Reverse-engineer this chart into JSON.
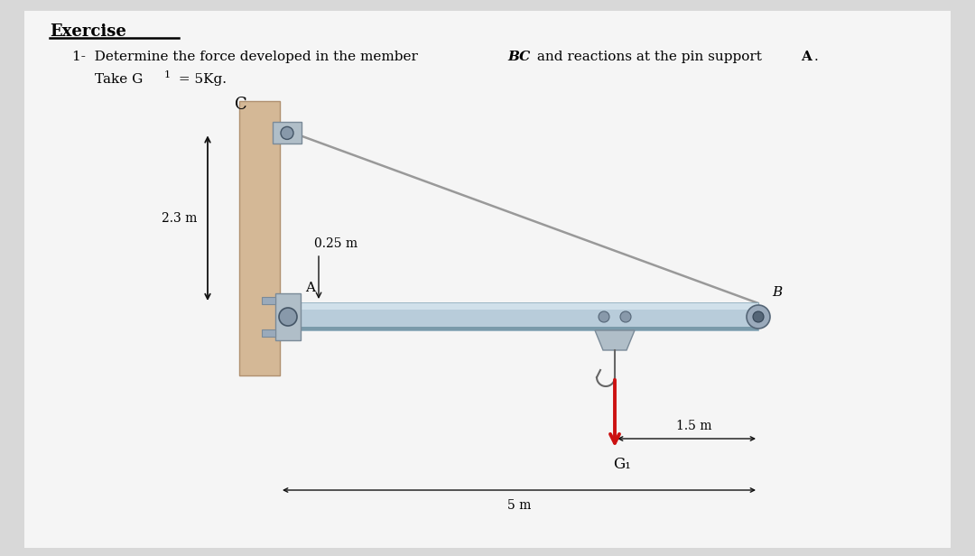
{
  "bg_color": "#d8d8d8",
  "panel_color": "#f5f5f5",
  "beam_color": "#b8ccda",
  "beam_edge": "#8aaabb",
  "beam_highlight": "#d0e0ea",
  "wall_color": "#d4b896",
  "wall_edge": "#b09070",
  "cable_color": "#999999",
  "arrow_color": "#cc1111",
  "dim_color": "#111111",
  "bolt_color": "#8899aa",
  "bolt_edge": "#556677",
  "label_C": "C",
  "label_A": "A",
  "label_B": "B",
  "label_G1": "G₁",
  "dim_23": "2.3 m",
  "dim_025": "0.25 m",
  "dim_15": "1.5 m",
  "dim_5": "5 m"
}
